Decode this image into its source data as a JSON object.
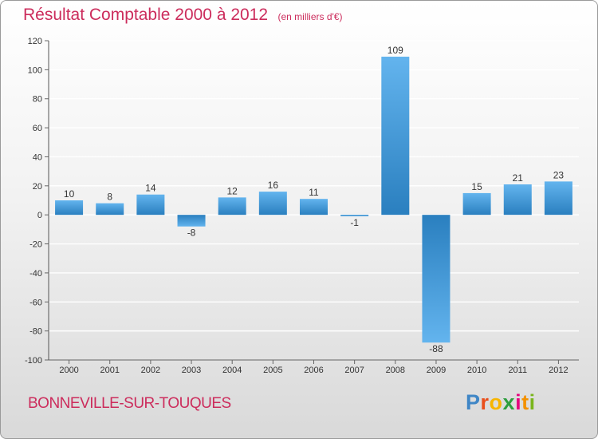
{
  "header": {
    "title": "Résultat Comptable 2000 à 2012",
    "subtitle": "(en milliers d'€)"
  },
  "footer": {
    "commune": "BONNEVILLE-SUR-TOUQUES",
    "logo_letters": [
      "P",
      "r",
      "o",
      "x",
      "i",
      "t",
      "i"
    ]
  },
  "colors": {
    "title": "#cc2c5c",
    "bar_light": "#63b4ee",
    "bar_dark": "#2a7fbf",
    "logo": [
      "#3f86c6",
      "#e94e1b",
      "#f7b500",
      "#2e9e3e",
      "#e6007e",
      "#f39200",
      "#7ab51d"
    ]
  },
  "chart_data": {
    "type": "bar",
    "title": "Résultat Comptable 2000 à 2012",
    "units": "en milliers d'€",
    "categories": [
      "2000",
      "2001",
      "2002",
      "2003",
      "2004",
      "2005",
      "2006",
      "2007",
      "2008",
      "2009",
      "2010",
      "2011",
      "2012"
    ],
    "values": [
      10,
      8,
      14,
      -8,
      12,
      16,
      11,
      -1,
      109,
      -88,
      15,
      21,
      23
    ],
    "value_labels": [
      "10",
      "8",
      "14",
      "-8",
      "12",
      "16",
      "11",
      "-1",
      "109",
      "-88",
      "15",
      "21",
      "23"
    ],
    "ylim": [
      -100,
      120
    ],
    "yticks": [
      120,
      100,
      80,
      60,
      40,
      20,
      0,
      -20,
      -40,
      -60,
      -80,
      -100
    ],
    "ytick_labels": [
      "120",
      "100",
      "80",
      "60",
      "40",
      "20",
      "0",
      "-20",
      "-40",
      "-60",
      "-80",
      "-100"
    ],
    "grid": true
  }
}
